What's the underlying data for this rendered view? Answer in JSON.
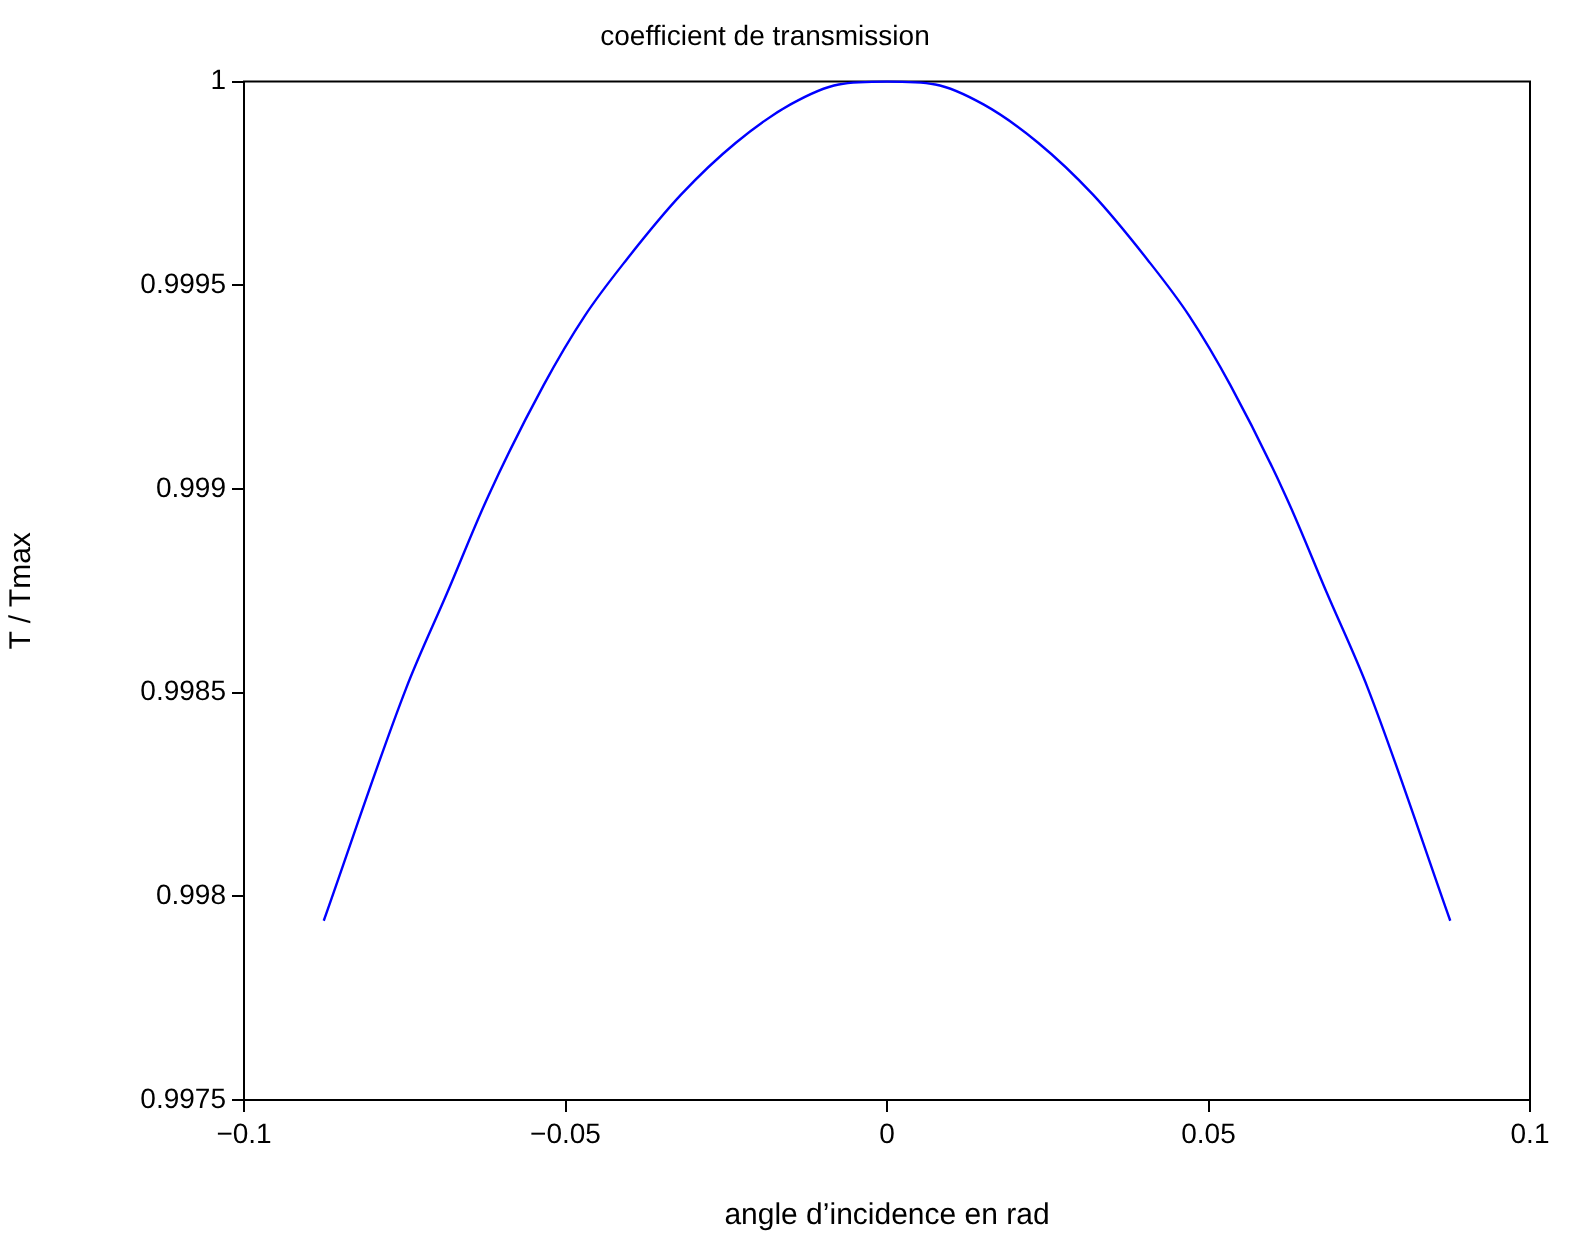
{
  "chart_data": {
    "type": "line",
    "title": "coefficient de transmission",
    "xlabel": "angle d’incidence en rad",
    "ylabel": "T / Tmax",
    "x": [
      -0.0876,
      -0.0748,
      -0.0684,
      -0.062,
      -0.0534,
      -0.047,
      -0.0406,
      -0.032,
      -0.0235,
      -0.015,
      -0.0075,
      0,
      0.0075,
      0.015,
      0.0235,
      0.032,
      0.0406,
      0.047,
      0.0534,
      0.062,
      0.0684,
      0.0748,
      0.0876
    ],
    "values": [
      0.99794,
      0.99851,
      0.998745,
      0.998983,
      0.999255,
      0.999425,
      0.999561,
      0.999723,
      0.99985,
      0.999944,
      0.999993,
      1,
      0.999993,
      0.999944,
      0.99985,
      0.999723,
      0.999561,
      0.999425,
      0.999255,
      0.998983,
      0.998745,
      0.99851,
      0.99794
    ],
    "color": "#0000ff",
    "xlim": [
      -0.1,
      0.1
    ],
    "xticks": [
      {
        "value": -0.1,
        "label": "−0.1"
      },
      {
        "value": -0.05,
        "label": "−0.05"
      },
      0,
      0.05,
      0.1
    ],
    "ylim": [
      0.9975,
      1
    ],
    "yticks": [
      0.9975,
      0.998,
      0.9985,
      0.999,
      0.9995,
      1
    ]
  }
}
